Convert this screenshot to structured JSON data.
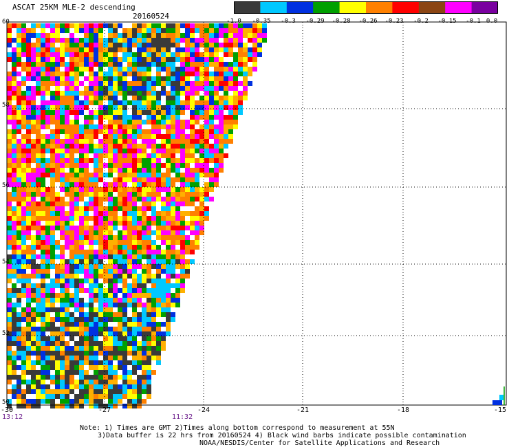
{
  "header": {
    "title": "ASCAT 25KM MLE-2 descending",
    "date": "20160524"
  },
  "colorbar": {
    "segments": [
      {
        "color": "#3a3a3a"
      },
      {
        "color": "#00c8ff"
      },
      {
        "color": "#0030e0"
      },
      {
        "color": "#00a000"
      },
      {
        "color": "#ffff00"
      },
      {
        "color": "#ff8000"
      },
      {
        "color": "#ff0000"
      },
      {
        "color": "#8b4513"
      },
      {
        "color": "#ff00ff"
      },
      {
        "color": "#7a00a0"
      }
    ],
    "labels": [
      "-1.0",
      "-0.35",
      "-0.3",
      "-0.29",
      "-0.28",
      "-0.26",
      "-0.23",
      "-0.2",
      "-0.15",
      "-0.1",
      "0.0"
    ]
  },
  "map": {
    "x_ticks": [
      "-30",
      "-27",
      "-24",
      "-21",
      "-18",
      "-15"
    ],
    "y_ticks": [
      "60",
      "58",
      "56",
      "54",
      "52",
      "50"
    ],
    "lon_range": [
      -30,
      -15
    ],
    "lat_range": [
      50,
      60
    ],
    "grid": "dotted",
    "swath_colors": [
      "#3a3a3a",
      "#00c8ff",
      "#0030e0",
      "#00a000",
      "#ffff00",
      "#ffb000",
      "#ff8000",
      "#ff0000",
      "#8b4513",
      "#ff00ff",
      "#ffffff"
    ]
  },
  "times": {
    "left": "13:12",
    "right": "11:32"
  },
  "notes": {
    "line1": "Note: 1) Times are GMT 2)Times along bottom correspond to measurement at 55N",
    "line2": "3)Data buffer is 22 hrs from 20160524 4) Black wind barbs indicate possible contamination",
    "line3": "NOAA/NESDIS/Center for Satellite Applications and Research"
  }
}
